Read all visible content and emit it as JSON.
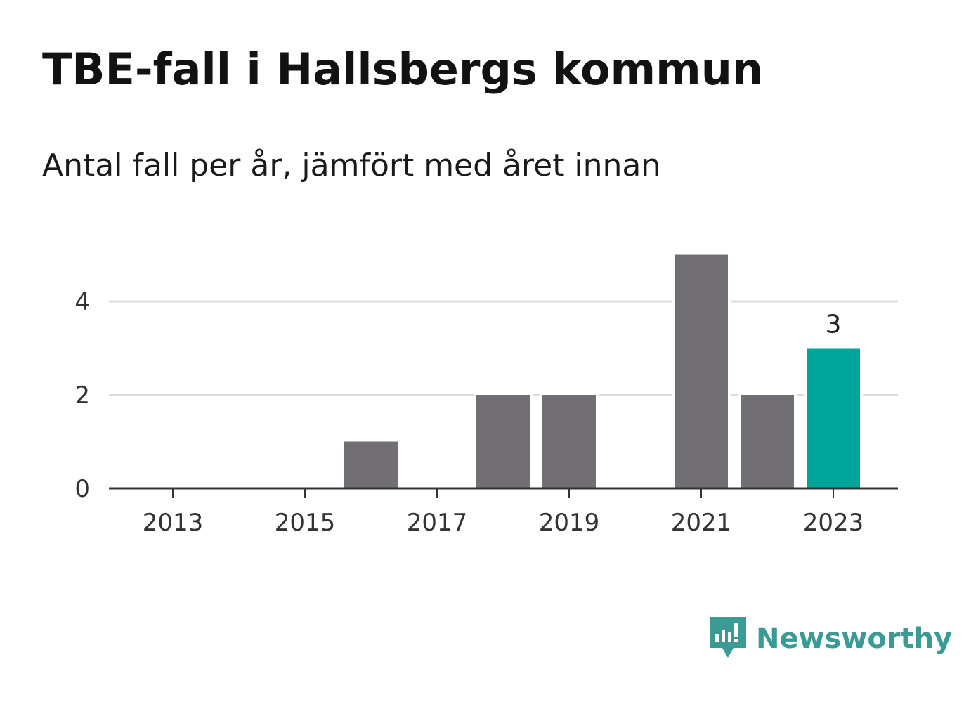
{
  "header": {
    "title": "TBE-fall i Hallsbergs kommun",
    "subtitle": "Antal fall per år, jämfört med året innan"
  },
  "brand": {
    "name": "Newsworthy",
    "icon": "newsworthy-logo-icon",
    "color": "#3b9b94"
  },
  "chart_data": {
    "type": "bar",
    "categories": [
      "2013",
      "2014",
      "2015",
      "2016",
      "2017",
      "2018",
      "2019",
      "2020",
      "2021",
      "2022",
      "2023"
    ],
    "values": [
      0,
      0,
      0,
      1,
      0,
      2,
      2,
      0,
      5,
      2,
      3
    ],
    "x_tick_labels": [
      "2013",
      "2015",
      "2017",
      "2019",
      "2021",
      "2023"
    ],
    "y_ticks": [
      0,
      2,
      4
    ],
    "y_tick_labels": [
      "0",
      "2",
      "4"
    ],
    "ylim": [
      0,
      5.5
    ],
    "grid": true,
    "highlight": {
      "category": "2023",
      "label": "3"
    },
    "colors": {
      "bar": "#716f74",
      "highlight": "#00a59a",
      "grid": "#dcdcdc",
      "axis": "#333333"
    }
  }
}
